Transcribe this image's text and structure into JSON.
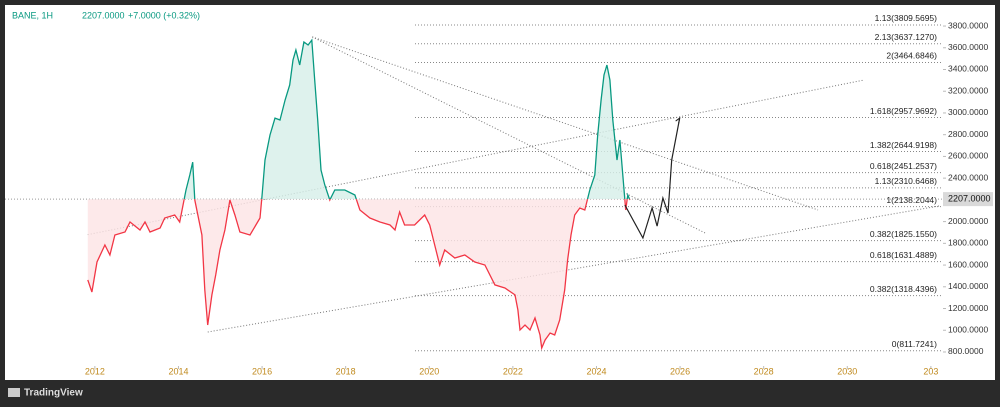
{
  "chart_data": {
    "type": "baseline",
    "symbol": "BANE, 1H",
    "last_price": {
      "value": 2207,
      "label": "2207.0000"
    },
    "change": "+7.0000 (+0.32%)",
    "brand": "TradingView",
    "above_color": "#089981",
    "below_color": "#f23645",
    "x": [
      2011.83,
      2011.93,
      2012.05,
      2012.24,
      2012.36,
      2012.48,
      2012.72,
      2012.84,
      2013.08,
      2013.2,
      2013.32,
      2013.56,
      2013.67,
      2013.91,
      2014.03,
      2014.18,
      2014.27,
      2014.34,
      2014.39,
      2014.56,
      2014.63,
      2014.7,
      2014.8,
      2014.89,
      2014.99,
      2015.11,
      2015.23,
      2015.35,
      2015.47,
      2015.71,
      2015.95,
      2016.0,
      2016.07,
      2016.19,
      2016.31,
      2016.43,
      2016.55,
      2016.66,
      2016.74,
      2016.81,
      2016.9,
      2017.0,
      2017.1,
      2017.19,
      2017.26,
      2017.33,
      2017.41,
      2017.5,
      2017.62,
      2017.74,
      2017.98,
      2018.22,
      2018.34,
      2018.58,
      2018.82,
      2019.06,
      2019.18,
      2019.29,
      2019.41,
      2019.65,
      2019.89,
      2020.01,
      2020.13,
      2020.25,
      2020.37,
      2020.61,
      2020.85,
      2021.09,
      2021.33,
      2021.57,
      2021.81,
      2022.05,
      2022.12,
      2022.17,
      2022.29,
      2022.41,
      2022.53,
      2022.65,
      2022.69,
      2022.77,
      2022.89,
      2023.0,
      2023.12,
      2023.24,
      2023.31,
      2023.39,
      2023.48,
      2023.6,
      2023.72,
      2023.84,
      2023.96,
      2024.03,
      2024.11,
      2024.18,
      2024.25,
      2024.32,
      2024.39,
      2024.49,
      2024.56,
      2024.63,
      2024.7,
      2024.75,
      2024.8
    ],
    "values": [
      1463,
      1352,
      1628,
      1785,
      1693,
      1877,
      1904,
      1996,
      1923,
      1996,
      1904,
      1941,
      2033,
      2061,
      1996,
      2291,
      2429,
      2548,
      2199,
      1877,
      1371,
      1048,
      1325,
      1509,
      1739,
      1923,
      2199,
      2061,
      1904,
      1877,
      2033,
      2245,
      2567,
      2797,
      2953,
      2935,
      3119,
      3257,
      3487,
      3579,
      3441,
      3653,
      3625,
      3671,
      3303,
      2935,
      2475,
      2337,
      2199,
      2291,
      2291,
      2245,
      2107,
      2033,
      1996,
      1969,
      1923,
      2088,
      1969,
      1969,
      2061,
      1969,
      1785,
      1601,
      1739,
      1665,
      1693,
      1628,
      1601,
      1417,
      1389,
      1325,
      1186,
      1002,
      1048,
      1002,
      1113,
      956,
      837,
      910,
      975,
      956,
      1094,
      1371,
      1647,
      1877,
      2061,
      2125,
      2107,
      2291,
      2429,
      2797,
      3119,
      3349,
      3441,
      3303,
      2935,
      2567,
      2751,
      2429,
      2107,
      2245,
      2199
    ],
    "projection_color": "#222222",
    "projection_x": [
      2024.68,
      2025.11,
      2025.33,
      2025.45,
      2025.59,
      2025.71,
      2025.8,
      2025.99
    ],
    "projection_values": [
      2153,
      1849,
      2125,
      1959,
      2217,
      2079,
      2567,
      2953
    ],
    "trendlines": [
      {
        "x": [
          2017.2,
          2026.6
        ],
        "y": [
          3700,
          1895
        ]
      },
      {
        "x": [
          2017.2,
          2029.3
        ],
        "y": [
          3700,
          2107
        ]
      },
      {
        "x": [
          2014.7,
          2032.2
        ],
        "y": [
          984,
          2144
        ]
      },
      {
        "x": [
          2011.83,
          2030.4
        ],
        "y": [
          1880,
          3303
        ]
      }
    ],
    "levels": [
      {
        "value": 3809.5695,
        "label": "1.13(3809.5695)"
      },
      {
        "value": 3637.127,
        "label": "2.13(3637.1270)"
      },
      {
        "value": 3464.6846,
        "label": "2(3464.6846)"
      },
      {
        "value": 2957.9692,
        "label": "1.618(2957.9692)"
      },
      {
        "value": 2644.9198,
        "label": "1.382(2644.9198)"
      },
      {
        "value": 2451.2537,
        "label": "0.618(2451.2537)"
      },
      {
        "value": 2310.6468,
        "label": "1.13(2310.6468)"
      },
      {
        "value": 2138.2044,
        "label": "1(2138.2044)"
      },
      {
        "value": 1825.155,
        "label": "0.382(1825.1550)"
      },
      {
        "value": 1631.4889,
        "label": "0.618(1631.4889)"
      },
      {
        "value": 1318.4396,
        "label": "0.382(1318.4396)"
      },
      {
        "value": 811.7241,
        "label": "0(811.7241)"
      }
    ],
    "xlim": [
      2009.85,
      2032.29
    ],
    "ylim": [
      671,
      3966
    ],
    "xticks": [
      2012,
      2014,
      2016,
      2018,
      2020,
      2022,
      2024,
      2026,
      2028,
      2030,
      {
        "value": 2032,
        "label": "203"
      }
    ],
    "yticks": [
      {
        "value": 800,
        "label": "800.0000"
      },
      {
        "value": 1000,
        "label": "1000.0000"
      },
      {
        "value": 1200,
        "label": "1200.0000"
      },
      {
        "value": 1400,
        "label": "1400.0000"
      },
      {
        "value": 1600,
        "label": "1600.0000"
      },
      {
        "value": 1800,
        "label": "1800.0000"
      },
      {
        "value": 2000,
        "label": "2000.0000"
      },
      {
        "value": 2200,
        "label": "2200.0000"
      },
      {
        "value": 2400,
        "label": "2400.0000"
      },
      {
        "value": 2600,
        "label": "2600.0000"
      },
      {
        "value": 2800,
        "label": "2800.0000"
      },
      {
        "value": 3000,
        "label": "3000.0000"
      },
      {
        "value": 3200,
        "label": "3200.0000"
      },
      {
        "value": 3400,
        "label": "3400.0000"
      },
      {
        "value": 3600,
        "label": "3600.0000"
      },
      {
        "value": 3800,
        "label": "3800.0000"
      }
    ]
  }
}
